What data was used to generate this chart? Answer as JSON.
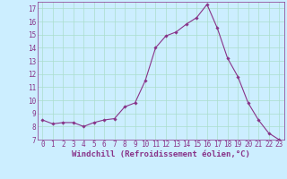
{
  "x": [
    0,
    1,
    2,
    3,
    4,
    5,
    6,
    7,
    8,
    9,
    10,
    11,
    12,
    13,
    14,
    15,
    16,
    17,
    18,
    19,
    20,
    21,
    22,
    23
  ],
  "y": [
    8.5,
    8.2,
    8.3,
    8.3,
    8.0,
    8.3,
    8.5,
    8.6,
    9.5,
    9.8,
    11.5,
    14.0,
    14.9,
    15.2,
    15.8,
    16.3,
    17.3,
    15.5,
    13.2,
    11.8,
    9.8,
    8.5,
    7.5,
    7.0
  ],
  "line_color": "#883388",
  "marker": "D",
  "marker_size": 1.8,
  "line_width": 0.8,
  "bg_color": "#cceeff",
  "grid_color": "#aaddcc",
  "xlabel": "Windchill (Refroidissement éolien,°C)",
  "tick_color": "#883388",
  "ylim": [
    7,
    17.5
  ],
  "xlim": [
    -0.5,
    23.5
  ],
  "yticks": [
    7,
    8,
    9,
    10,
    11,
    12,
    13,
    14,
    15,
    16,
    17
  ],
  "xticks": [
    0,
    1,
    2,
    3,
    4,
    5,
    6,
    7,
    8,
    9,
    10,
    11,
    12,
    13,
    14,
    15,
    16,
    17,
    18,
    19,
    20,
    21,
    22,
    23
  ],
  "tick_fontsize": 5.5,
  "label_fontsize": 6.5
}
